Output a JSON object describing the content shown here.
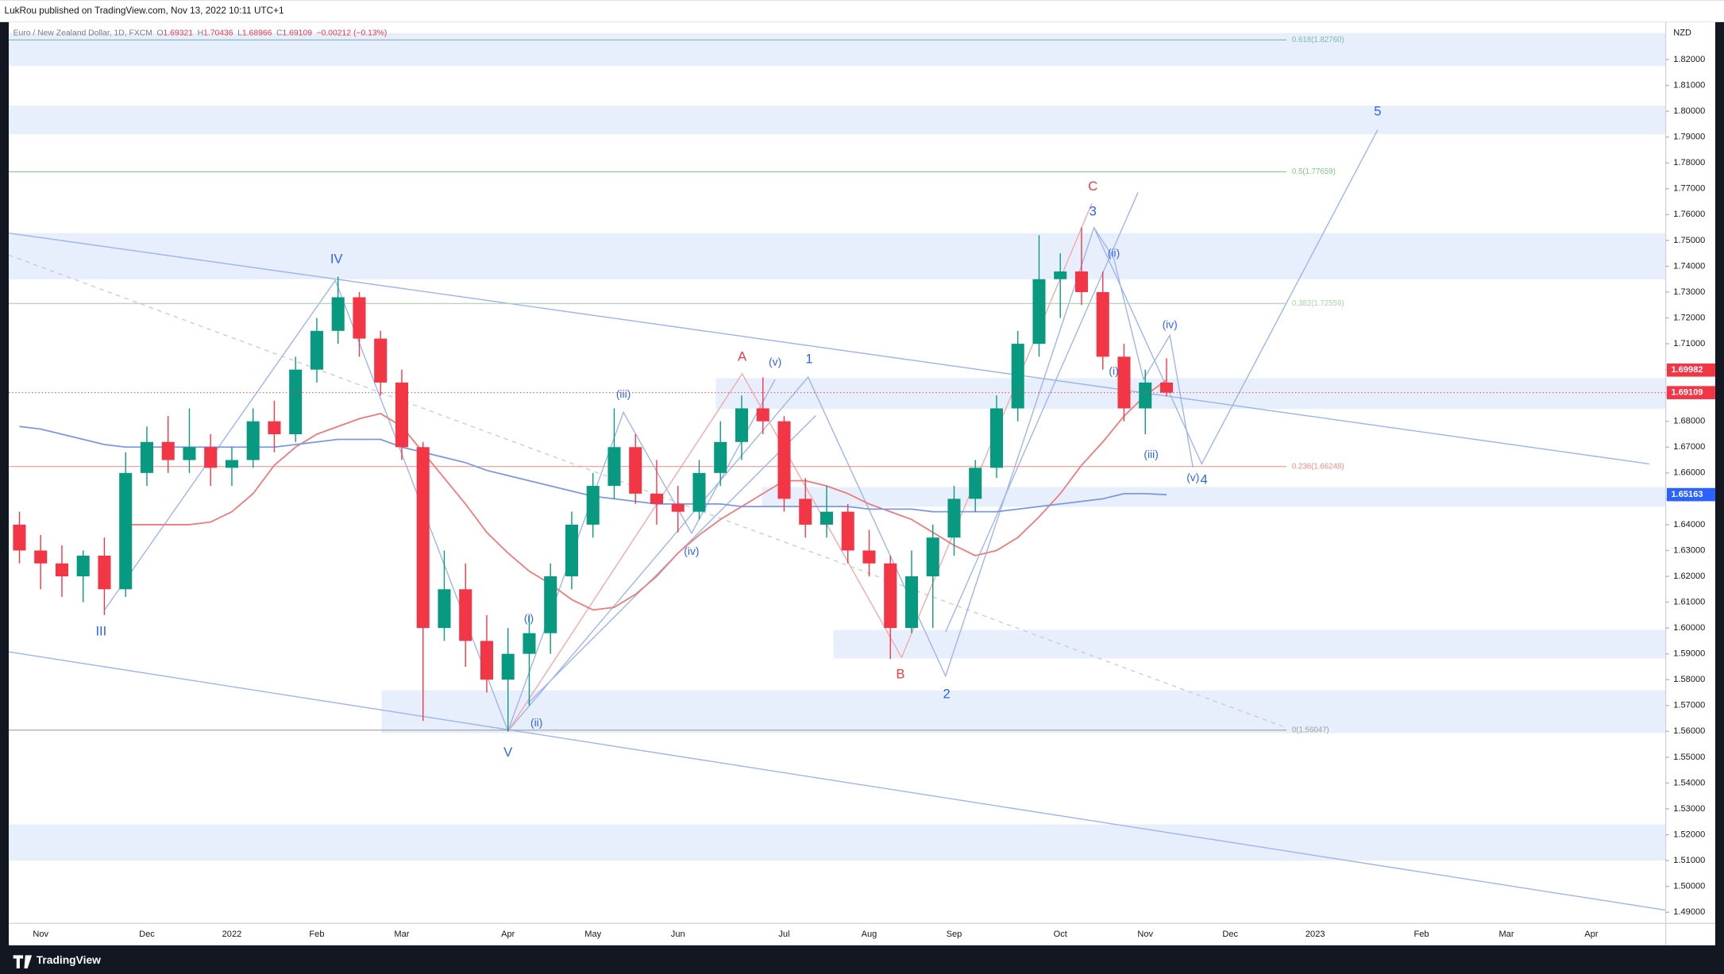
{
  "header": {
    "published": "LukRou published on TradingView.com, Nov 13, 2022 10:11 UTC+1",
    "brand": "TradingView"
  },
  "chart_data": {
    "type": "candlestick",
    "title": "Euro / New Zealand Dollar, 1D, FXCM",
    "legend_values": [
      {
        "label": "O",
        "value": 1.69321
      },
      {
        "label": "H",
        "value": 1.70436
      },
      {
        "label": "L",
        "value": 1.68966
      },
      {
        "label": "C",
        "value": 1.69109
      }
    ],
    "change": "−0.00212 (−0.13%)",
    "currency": "NZD",
    "categories": [
      null,
      "Nov",
      null,
      null,
      null,
      null,
      "Dec",
      null,
      null,
      null,
      "2022",
      null,
      null,
      null,
      "Feb",
      null,
      null,
      null,
      "Mar",
      null,
      null,
      null,
      null,
      "Apr",
      null,
      null,
      null,
      "May",
      null,
      null,
      null,
      "Jun",
      null,
      null,
      null,
      null,
      "Jul",
      null,
      null,
      null,
      "Aug",
      null,
      null,
      null,
      "Sep",
      null,
      null,
      null,
      null,
      "Oct",
      null,
      null,
      null,
      "Nov",
      null,
      null,
      null,
      "Dec",
      null,
      null,
      null,
      "2023",
      null,
      null,
      null,
      null,
      "Feb",
      null,
      null,
      null,
      "Mar",
      null,
      null,
      null,
      "Apr",
      null,
      null,
      null
    ],
    "open": [
      1.64,
      1.63,
      1.625,
      1.62,
      1.628,
      1.615,
      1.66,
      1.672,
      1.665,
      1.67,
      1.662,
      1.665,
      1.68,
      1.675,
      1.7,
      1.715,
      1.728,
      1.712,
      1.695,
      1.67,
      1.6,
      1.615,
      1.595,
      1.58,
      1.59,
      1.598,
      1.62,
      1.64,
      1.655,
      1.67,
      1.652,
      1.648,
      1.645,
      1.66,
      1.672,
      1.685,
      1.68,
      1.65,
      1.64,
      1.645,
      1.63,
      1.625,
      1.6,
      1.62,
      1.635,
      1.65,
      1.662,
      1.685,
      1.71,
      1.735,
      1.738,
      1.73,
      1.705,
      1.685,
      1.695,
      null,
      null,
      null,
      null,
      null,
      null,
      null,
      null,
      null,
      null,
      null,
      null,
      null,
      null,
      null,
      null,
      null,
      null,
      null,
      null,
      null,
      null,
      null
    ],
    "high": [
      1.645,
      1.636,
      1.632,
      1.63,
      1.635,
      1.668,
      1.678,
      1.682,
      1.685,
      1.675,
      1.67,
      1.685,
      1.688,
      1.705,
      1.72,
      1.736,
      1.73,
      1.715,
      1.7,
      1.672,
      1.63,
      1.625,
      1.605,
      1.6,
      1.605,
      1.625,
      1.645,
      1.66,
      1.685,
      1.675,
      1.665,
      1.655,
      1.665,
      1.68,
      1.69,
      1.697,
      1.682,
      1.658,
      1.655,
      1.648,
      1.638,
      1.628,
      1.63,
      1.64,
      1.655,
      1.665,
      1.69,
      1.715,
      1.752,
      1.745,
      1.755,
      1.738,
      1.71,
      1.7,
      1.70436,
      null,
      null,
      null,
      null,
      null,
      null,
      null,
      null,
      null,
      null,
      null,
      null,
      null,
      null,
      null,
      null,
      null,
      null,
      null,
      null,
      null,
      null,
      null
    ],
    "low": [
      1.625,
      1.615,
      1.612,
      1.61,
      1.605,
      1.612,
      1.655,
      1.66,
      1.66,
      1.655,
      1.655,
      1.662,
      1.668,
      1.672,
      1.695,
      1.71,
      1.705,
      1.69,
      1.665,
      1.564,
      1.595,
      1.585,
      1.575,
      1.56,
      1.57,
      1.59,
      1.615,
      1.635,
      1.65,
      1.648,
      1.64,
      1.637,
      1.642,
      1.655,
      1.665,
      1.675,
      1.645,
      1.635,
      1.635,
      1.625,
      1.62,
      1.588,
      1.598,
      1.6,
      1.628,
      1.645,
      1.658,
      1.68,
      1.705,
      1.72,
      1.725,
      1.7,
      1.68,
      1.675,
      1.68966,
      null,
      null,
      null,
      null,
      null,
      null,
      null,
      null,
      null,
      null,
      null,
      null,
      null,
      null,
      null,
      null,
      null,
      null,
      null,
      null,
      null,
      null,
      null
    ],
    "close": [
      1.63,
      1.625,
      1.62,
      1.628,
      1.615,
      1.66,
      1.672,
      1.665,
      1.67,
      1.662,
      1.665,
      1.68,
      1.675,
      1.7,
      1.715,
      1.728,
      1.712,
      1.695,
      1.67,
      1.6,
      1.615,
      1.595,
      1.58,
      1.59,
      1.598,
      1.62,
      1.64,
      1.655,
      1.67,
      1.652,
      1.648,
      1.645,
      1.66,
      1.672,
      1.685,
      1.68,
      1.65,
      1.64,
      1.645,
      1.63,
      1.625,
      1.6,
      1.62,
      1.635,
      1.65,
      1.662,
      1.685,
      1.71,
      1.735,
      1.738,
      1.73,
      1.705,
      1.685,
      1.695,
      1.69109,
      null,
      null,
      null,
      null,
      null,
      null,
      null,
      null,
      null,
      null,
      null,
      null,
      null,
      null,
      null,
      null,
      null,
      null,
      null,
      null,
      null,
      null,
      null
    ],
    "up_color": "#089981",
    "down_color": "#f23645",
    "overlays": [
      {
        "color": "#f07a7a",
        "values": [
          null,
          null,
          null,
          null,
          null,
          1.64,
          1.64,
          1.64,
          1.64,
          1.641,
          1.645,
          1.652,
          1.663,
          1.67,
          1.675,
          1.678,
          1.681,
          1.683,
          1.678,
          1.668,
          1.658,
          1.648,
          1.637,
          1.629,
          1.622,
          1.617,
          1.611,
          1.607,
          1.608,
          1.613,
          1.62,
          1.629,
          1.636,
          1.642,
          1.647,
          1.652,
          1.657,
          1.657,
          1.655,
          1.652,
          1.648,
          1.645,
          1.642,
          1.637,
          1.632,
          1.628,
          1.63,
          1.635,
          1.643,
          1.652,
          1.663,
          1.672,
          1.682,
          1.69,
          1.696,
          null,
          null,
          null,
          null,
          null,
          null,
          null,
          null,
          null,
          null,
          null,
          null,
          null,
          null,
          null,
          null,
          null,
          null,
          null,
          null,
          null,
          null,
          null
        ]
      },
      {
        "color": "#7b97e6",
        "values": [
          1.678,
          1.677,
          1.675,
          1.673,
          1.671,
          1.67,
          1.67,
          1.67,
          1.67,
          1.67,
          1.67,
          1.67,
          1.67,
          1.671,
          1.672,
          1.673,
          1.673,
          1.673,
          1.67,
          1.668,
          1.666,
          1.664,
          1.661,
          1.659,
          1.657,
          1.655,
          1.653,
          1.651,
          1.65,
          1.649,
          1.648,
          1.648,
          1.648,
          1.648,
          1.647,
          1.647,
          1.647,
          1.647,
          1.647,
          1.647,
          1.646,
          1.646,
          1.646,
          1.645,
          1.645,
          1.645,
          1.645,
          1.646,
          1.647,
          1.648,
          1.649,
          1.65,
          1.652,
          1.652,
          1.6516,
          null,
          null,
          null,
          null,
          null,
          null,
          null,
          null,
          null,
          null,
          null,
          null,
          null,
          null,
          null,
          null,
          null,
          null,
          null,
          null,
          null,
          null,
          null
        ]
      }
    ],
    "ylim": [
      1.4857,
      1.8345
    ],
    "yticks": [
      {
        "value": 1.82,
        "label": "1.82000"
      },
      {
        "value": 1.81,
        "label": "1.81000"
      },
      {
        "value": 1.8,
        "label": "1.80000"
      },
      {
        "value": 1.79,
        "label": "1.79000"
      },
      {
        "value": 1.78,
        "label": "1.78000"
      },
      {
        "value": 1.77,
        "label": "1.77000"
      },
      {
        "value": 1.76,
        "label": "1.76000"
      },
      {
        "value": 1.75,
        "label": "1.75000"
      },
      {
        "value": 1.74,
        "label": "1.74000"
      },
      {
        "value": 1.73,
        "label": "1.73000"
      },
      {
        "value": 1.72,
        "label": "1.72000"
      },
      {
        "value": 1.71,
        "label": "1.71000"
      },
      {
        "value": 1.7,
        "label": "1.70000"
      },
      {
        "value": 1.69,
        "label": "1.69000"
      },
      {
        "value": 1.68,
        "label": "1.68000"
      },
      {
        "value": 1.67,
        "label": "1.67000"
      },
      {
        "value": 1.66,
        "label": "1.66000"
      },
      {
        "value": 1.65,
        "label": "1.65000"
      },
      {
        "value": 1.64,
        "label": "1.64000"
      },
      {
        "value": 1.63,
        "label": "1.63000"
      },
      {
        "value": 1.62,
        "label": "1.62000"
      },
      {
        "value": 1.61,
        "label": "1.61000"
      },
      {
        "value": 1.6,
        "label": "1.60000"
      },
      {
        "value": 1.59,
        "label": "1.59000"
      },
      {
        "value": 1.58,
        "label": "1.58000"
      },
      {
        "value": 1.57,
        "label": "1.57000"
      },
      {
        "value": 1.56,
        "label": "1.56000"
      },
      {
        "value": 1.55,
        "label": "1.55000"
      },
      {
        "value": 1.54,
        "label": "1.54000"
      },
      {
        "value": 1.53,
        "label": "1.53000"
      },
      {
        "value": 1.52,
        "label": "1.52000"
      },
      {
        "value": 1.51,
        "label": "1.51000"
      },
      {
        "value": 1.5,
        "label": "1.50000"
      },
      {
        "value": 1.49,
        "label": "1.49000"
      }
    ],
    "grid": false,
    "price_lines": [
      {
        "value": 1.69982,
        "color": "#f23645"
      },
      {
        "value": 1.69109,
        "color": "#f23645"
      },
      {
        "value": 1.65163,
        "color": "#2962ff"
      }
    ],
    "fib_levels": [
      {
        "value": 1.8276,
        "label": "0.618(1.82760)",
        "color": "#7fb8b0"
      },
      {
        "value": 1.77659,
        "label": "0.5(1.77659)",
        "color": "#81c784"
      },
      {
        "value": 1.72559,
        "label": "0.382(1.72559)",
        "color": "#a5d6a7"
      },
      {
        "value": 1.66248,
        "label": "0.236(1.66248)",
        "color": "#f28b82"
      },
      {
        "value": 1.56047,
        "label": "0(1.56047)",
        "color": "#9e9e9e"
      }
    ],
    "annotations": [
      "IV",
      "III",
      "V",
      "(i)",
      "(ii)",
      "(iii)",
      "(iv)",
      "(v)",
      "1",
      "A",
      "B",
      "2",
      "C",
      "3",
      "(ii)",
      "(i)",
      "(iv)",
      "(iii)",
      "(v)",
      "4",
      "5"
    ]
  }
}
